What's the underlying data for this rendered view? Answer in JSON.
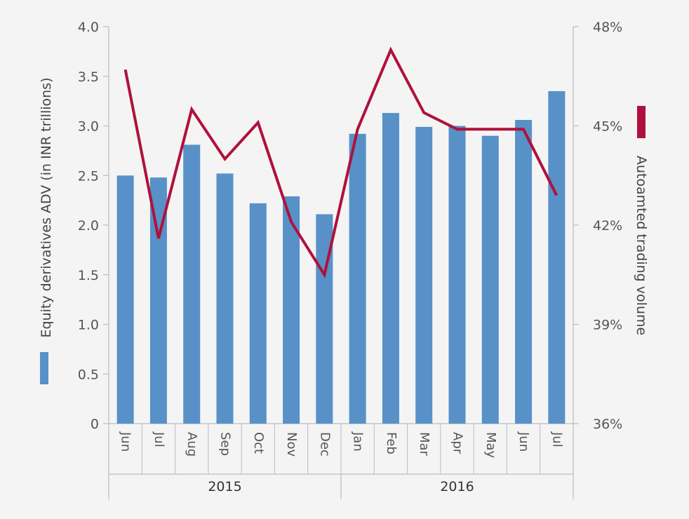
{
  "chart_data": {
    "type": "bar",
    "categories": [
      "Jun",
      "Jul",
      "Aug",
      "Sep",
      "Oct",
      "Nov",
      "Dec",
      "Jan",
      "Feb",
      "Mar",
      "Apr",
      "May",
      "Jun",
      "Jul"
    ],
    "groups": [
      {
        "label": "2015",
        "start": 0,
        "end": 6
      },
      {
        "label": "2016",
        "start": 7,
        "end": 13
      }
    ],
    "series": [
      {
        "name": "Equity derivatives ADV (in INR trillions)",
        "type": "bar",
        "axis": "left",
        "color": "#5791c8",
        "values": [
          2.5,
          2.48,
          2.81,
          2.52,
          2.22,
          2.29,
          2.11,
          2.92,
          3.13,
          2.99,
          3.0,
          2.9,
          3.06,
          3.35
        ]
      },
      {
        "name": "Autoamted trading volume",
        "type": "line",
        "axis": "right",
        "color": "#b0113c",
        "values": [
          46.7,
          41.6,
          45.5,
          44.0,
          45.1,
          42.1,
          40.5,
          44.9,
          47.3,
          45.4,
          44.9,
          44.9,
          44.9,
          42.9
        ]
      }
    ],
    "y_left": {
      "label": "Equity derivatives ADV (in INR trillions)",
      "min": 0,
      "max": 4.0,
      "ticks": [
        "0",
        "0.5",
        "1.0",
        "1.5",
        "2.0",
        "2.5",
        "3.0",
        "3.5",
        "4.0"
      ]
    },
    "y_right": {
      "label": "Autoamted trading volume",
      "min": 36,
      "max": 48,
      "ticks": [
        "36%",
        "39%",
        "42%",
        "45%",
        "48%"
      ]
    },
    "grid": false,
    "legend": "axis-side"
  }
}
